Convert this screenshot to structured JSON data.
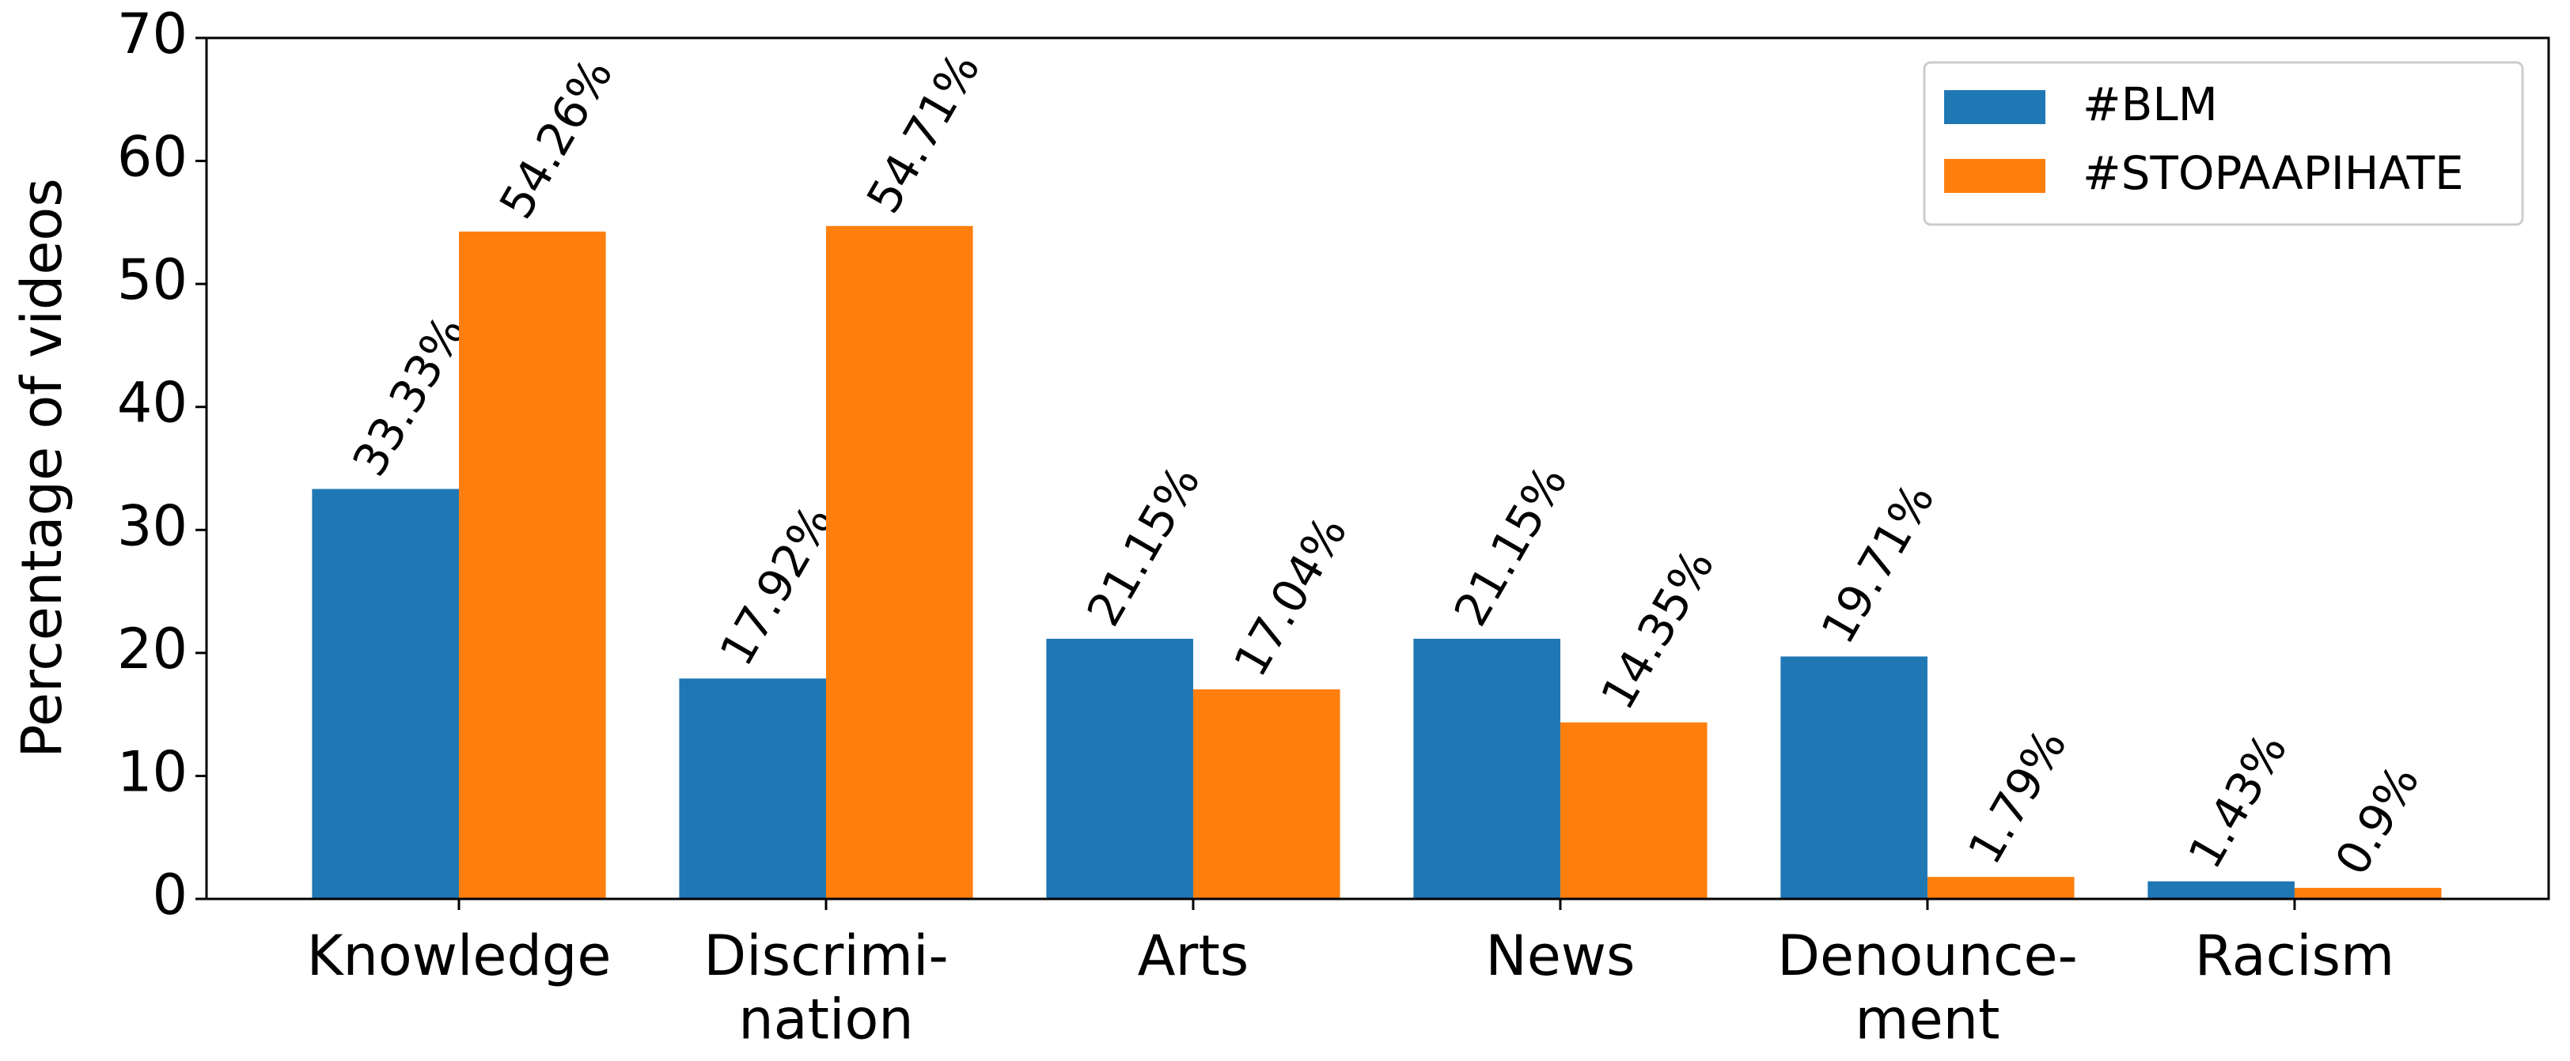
{
  "chart_data": {
    "type": "bar",
    "y_label": "Percentage of videos",
    "categories": [
      "Knowledge",
      "Discrimi-\nnation",
      "Arts",
      "News",
      "Denounce-\nment",
      "Racism"
    ],
    "series": [
      {
        "name": "#BLM",
        "color": "#1f77b4",
        "values": [
          33.33,
          17.92,
          21.15,
          21.15,
          19.71,
          1.43
        ],
        "value_labels": [
          "33.33%",
          "17.92%",
          "21.15%",
          "21.15%",
          "19.71%",
          "1.43%"
        ]
      },
      {
        "name": "#STOPAAPIHATE",
        "color": "#ff7f0e",
        "values": [
          54.26,
          54.71,
          17.04,
          14.35,
          1.79,
          0.9
        ],
        "value_labels": [
          "54.26%",
          "54.71%",
          "17.04%",
          "14.35%",
          "1.79%",
          "0.9%"
        ]
      }
    ],
    "ylim": [
      0,
      70
    ],
    "yticks": [
      0,
      10,
      20,
      30,
      40,
      50,
      60,
      70
    ],
    "grid": false,
    "legend": "upper right"
  }
}
